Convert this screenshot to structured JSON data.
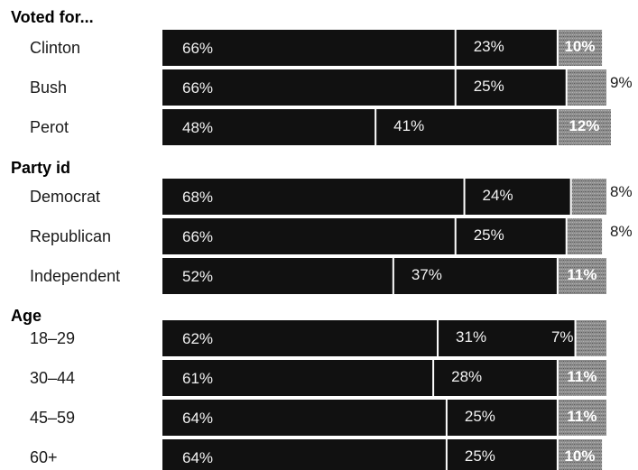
{
  "chart_data": {
    "type": "bar",
    "orientation": "horizontal",
    "stacked": true,
    "grid": false,
    "legend": "none",
    "colors": {
      "segment_1": "#111111",
      "segment_2": "#111111",
      "segment_3": "#8e8e8e",
      "divider": "#ffffff",
      "label": "#f2f2f2"
    },
    "groups": [
      {
        "title": "Voted for...",
        "rows": [
          {
            "label": "Clinton",
            "values": [
              66,
              23,
              10
            ],
            "value_labels": [
              "66%",
              "23%",
              "10%"
            ],
            "third_label_outside": false
          },
          {
            "label": "Bush",
            "values": [
              66,
              25,
              9
            ],
            "value_labels": [
              "66%",
              "25%",
              "9%"
            ],
            "third_label_outside": true
          },
          {
            "label": "Perot",
            "values": [
              48,
              41,
              12
            ],
            "value_labels": [
              "48%",
              "41%",
              "12%"
            ],
            "third_label_outside": false
          }
        ]
      },
      {
        "title": "Party id",
        "rows": [
          {
            "label": "Democrat",
            "values": [
              68,
              24,
              8
            ],
            "value_labels": [
              "68%",
              "24%",
              "8%"
            ],
            "third_label_outside": true
          },
          {
            "label": "Republican",
            "values": [
              66,
              25,
              8
            ],
            "value_labels": [
              "66%",
              "25%",
              "8%"
            ],
            "third_label_outside": true
          },
          {
            "label": "Independent",
            "values": [
              52,
              37,
              11
            ],
            "value_labels": [
              "52%",
              "37%",
              "11%"
            ],
            "third_label_outside": false
          }
        ]
      },
      {
        "title": "Age",
        "rows": [
          {
            "label": "18–29",
            "values": [
              62,
              31,
              7
            ],
            "value_labels": [
              "62%",
              "31%",
              "7%"
            ],
            "third_label_outside": false,
            "third_label_left": true
          },
          {
            "label": "30–44",
            "values": [
              61,
              28,
              11
            ],
            "value_labels": [
              "61%",
              "28%",
              "11%"
            ],
            "third_label_outside": false
          },
          {
            "label": "45–59",
            "values": [
              64,
              25,
              11
            ],
            "value_labels": [
              "64%",
              "25%",
              "11%"
            ],
            "third_label_outside": false
          },
          {
            "label": "60+",
            "values": [
              64,
              25,
              10
            ],
            "value_labels": [
              "64%",
              "25%",
              "10%"
            ],
            "third_label_outside": false
          }
        ]
      }
    ]
  }
}
